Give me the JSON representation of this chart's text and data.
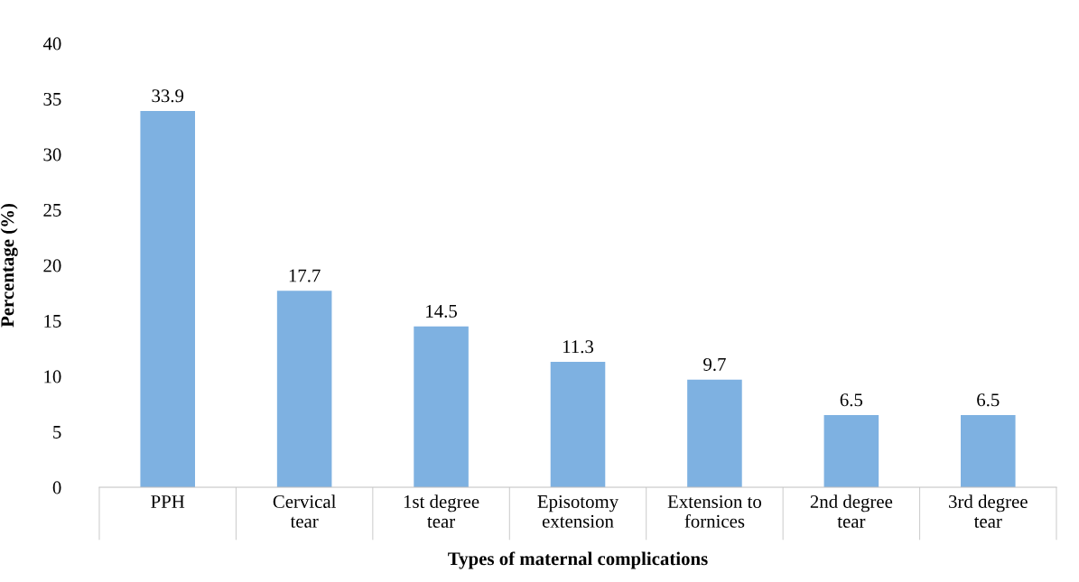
{
  "chart_data": {
    "type": "bar",
    "xlabel": "Types of maternal complications",
    "ylabel": "Percentage (%)",
    "categories": [
      "PPH",
      "Cervical\ntear",
      "1st degree\ntear",
      "Episotomy\nextension",
      "Extension to\nfornices",
      "2nd degree\ntear",
      "3rd degree\ntear"
    ],
    "values": [
      33.9,
      17.7,
      14.5,
      11.3,
      9.7,
      6.5,
      6.5
    ],
    "color": "#7eb1e1",
    "ylim": [
      0,
      40
    ],
    "yticks": [
      0,
      5,
      10,
      15,
      20,
      25,
      30,
      35,
      40
    ],
    "grid": false,
    "data_labels": true
  }
}
